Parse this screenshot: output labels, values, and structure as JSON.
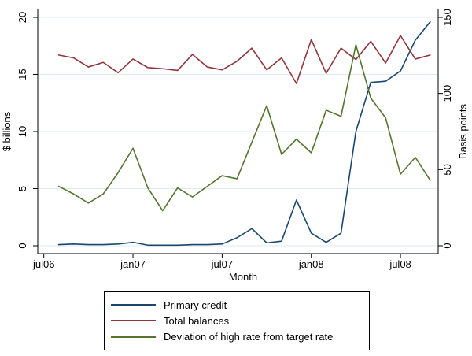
{
  "figure": {
    "background": "#ffffff",
    "text_color": "#000000",
    "grid_color": "#dfeaf0"
  },
  "chart_data": {
    "type": "line",
    "title": "",
    "xlabel": "Month",
    "ylabel_left": "$ billions",
    "ylabel_right": "Basis points",
    "grid": "horizontal",
    "legend_position": "bottom-center",
    "x_months": [
      "aug06",
      "sep06",
      "oct06",
      "nov06",
      "dec06",
      "jan07",
      "feb07",
      "mar07",
      "apr07",
      "may07",
      "jun07",
      "jul07",
      "aug07",
      "sep07",
      "oct07",
      "nov07",
      "dec07",
      "jan08",
      "feb08",
      "mar08",
      "apr08",
      "may08",
      "jun08",
      "jul08",
      "aug08",
      "sep08"
    ],
    "x_tick_labels": [
      "jul06",
      "jan07",
      "jul07",
      "jan08",
      "jul08"
    ],
    "x_tick_positions": [
      0,
      6,
      12,
      18,
      24
    ],
    "y_left": {
      "ticks": [
        0,
        5,
        10,
        15,
        20
      ],
      "range": [
        0,
        20
      ]
    },
    "y_right": {
      "ticks": [
        0,
        50,
        100,
        150
      ],
      "range": [
        0,
        150
      ]
    },
    "series": [
      {
        "name": "Primary credit",
        "axis": "left",
        "color": "#1a476f",
        "values": [
          0.1,
          0.15,
          0.1,
          0.1,
          0.15,
          0.3,
          0.05,
          0.05,
          0.05,
          0.1,
          0.1,
          0.15,
          0.7,
          1.5,
          0.25,
          0.4,
          4.0,
          1.1,
          0.3,
          1.1,
          10.0,
          14.3,
          14.4,
          15.3,
          18.0,
          19.6
        ]
      },
      {
        "name": "Total balances",
        "axis": "left",
        "color": "#90353b",
        "values": [
          16.7,
          16.45,
          15.65,
          16.05,
          15.15,
          16.35,
          15.6,
          15.5,
          15.35,
          16.75,
          15.65,
          15.4,
          16.15,
          17.3,
          15.4,
          16.45,
          14.2,
          18.05,
          15.1,
          17.3,
          16.3,
          17.9,
          16.0,
          18.4,
          16.35,
          16.7
        ]
      },
      {
        "name": "Deviation of high rate from target rate",
        "axis": "right",
        "color": "#55752f",
        "values": [
          39,
          34,
          28,
          34,
          48,
          64,
          38,
          23,
          38,
          32,
          39,
          46,
          44,
          68,
          92,
          60,
          70,
          61,
          89,
          85,
          132,
          97,
          84,
          47,
          58,
          43
        ]
      }
    ]
  }
}
